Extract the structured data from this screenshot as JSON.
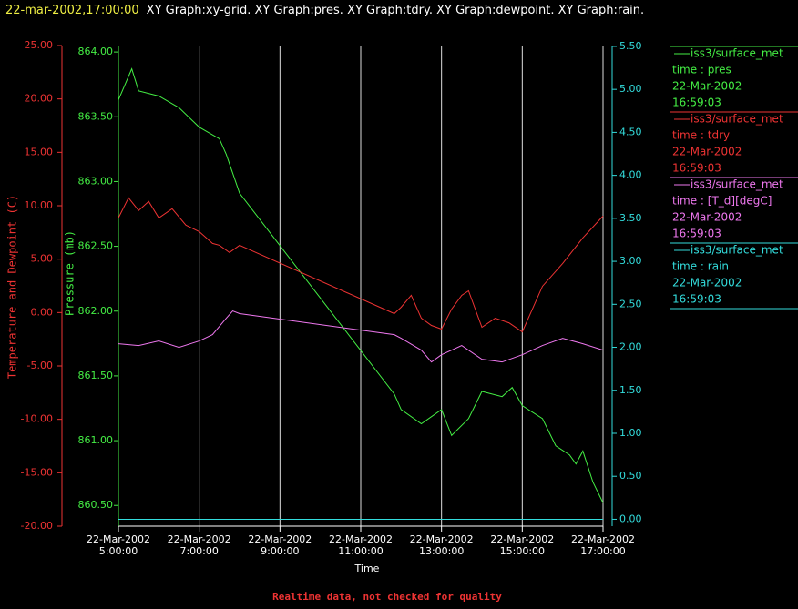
{
  "header": {
    "timestamp": "22-mar-2002,17:00:00",
    "title": "XY Graph:xy-grid.  XY Graph:pres.  XY Graph:tdry.  XY Graph:dewpoint.  XY Graph:rain."
  },
  "footer": "Realtime data, not checked for quality",
  "chart_data": {
    "type": "line",
    "grid": true,
    "xlabel": "Time",
    "ylabel": "Temperature and Dewpoint (C)",
    "y2label": "Pressure (mb)",
    "xlim": [
      5,
      17
    ],
    "xticks": [
      {
        "value": 5,
        "label": "22-Mar-2002\n5:00:00"
      },
      {
        "value": 7,
        "label": "22-Mar-2002\n7:00:00"
      },
      {
        "value": 9,
        "label": "22-Mar-2002\n9:00:00"
      },
      {
        "value": 11,
        "label": "22-Mar-2002\n11:00:00"
      },
      {
        "value": 13,
        "label": "22-Mar-2002\n13:00:00"
      },
      {
        "value": 15,
        "label": "22-Mar-2002\n15:00:00"
      },
      {
        "value": 17,
        "label": "22-Mar-2002\n17:00:00"
      }
    ],
    "ylim": [
      -20,
      25
    ],
    "yticks": [
      {
        "value": -20,
        "label": "-20.00"
      },
      {
        "value": -15,
        "label": "-15.00"
      },
      {
        "value": -10,
        "label": "-10.00"
      },
      {
        "value": -5,
        "label": "-5.00"
      },
      {
        "value": 0,
        "label": "0.00"
      },
      {
        "value": 5,
        "label": "5.00"
      },
      {
        "value": 10,
        "label": "10.00"
      },
      {
        "value": 15,
        "label": "15.00"
      },
      {
        "value": 20,
        "label": "20.00"
      },
      {
        "value": 25,
        "label": "25.00"
      }
    ],
    "y2lim": [
      860.34,
      864.05
    ],
    "y2ticks": [
      {
        "value": 860.5,
        "label": "860.50"
      },
      {
        "value": 861,
        "label": "861.00"
      },
      {
        "value": 861.5,
        "label": "861.50"
      },
      {
        "value": 862,
        "label": "862.00"
      },
      {
        "value": 862.5,
        "label": "862.50"
      },
      {
        "value": 863,
        "label": "863.00"
      },
      {
        "value": 863.5,
        "label": "863.50"
      },
      {
        "value": 864,
        "label": "864.00"
      }
    ],
    "y3lim": [
      -0.08,
      5.51
    ],
    "y3ticks": [
      {
        "value": 0,
        "label": "0.00"
      },
      {
        "value": 0.5,
        "label": "0.50"
      },
      {
        "value": 1,
        "label": "1.00"
      },
      {
        "value": 1.5,
        "label": "1.50"
      },
      {
        "value": 2,
        "label": "2.00"
      },
      {
        "value": 2.5,
        "label": "2.50"
      },
      {
        "value": 3,
        "label": "3.00"
      },
      {
        "value": 3.5,
        "label": "3.50"
      },
      {
        "value": 4,
        "label": "4.00"
      },
      {
        "value": 4.5,
        "label": "4.50"
      },
      {
        "value": 5,
        "label": "5.00"
      },
      {
        "value": 5.5,
        "label": "5.50"
      }
    ],
    "series": [
      {
        "source": "iss3/surface_met",
        "name": "time : pres",
        "date": "22-Mar-2002",
        "time": "16:59:03",
        "color": "#44ee44",
        "axis": "y2",
        "x": [
          5,
          5.33,
          5.5,
          6,
          6.5,
          7,
          7.5,
          7.67,
          8,
          11.83,
          12,
          12.5,
          13,
          13.25,
          13.67,
          14,
          14.5,
          14.75,
          15,
          15.5,
          15.83,
          16.17,
          16.33,
          16.5,
          16.75,
          17
        ],
        "values": [
          863.63,
          863.87,
          863.7,
          863.66,
          863.57,
          863.42,
          863.33,
          863.21,
          862.91,
          861.36,
          861.24,
          861.13,
          861.24,
          861.04,
          861.17,
          861.38,
          861.34,
          861.41,
          861.27,
          861.17,
          860.96,
          860.89,
          860.82,
          860.92,
          860.68,
          860.52
        ]
      },
      {
        "source": "iss3/surface_met",
        "name": "time : tdry",
        "date": "22-Mar-2002",
        "time": "16:59:03",
        "color": "#ee3333",
        "axis": "y",
        "x": [
          5,
          5.25,
          5.5,
          5.75,
          6,
          6.33,
          6.67,
          7,
          7.33,
          7.5,
          7.75,
          8,
          11.83,
          12,
          12.25,
          12.5,
          12.75,
          13,
          13.25,
          13.5,
          13.67,
          14,
          14.33,
          14.67,
          15,
          15.25,
          15.5,
          16,
          16.5,
          17
        ],
        "values": [
          8.86,
          10.74,
          9.55,
          10.4,
          8.86,
          9.72,
          8.18,
          7.58,
          6.47,
          6.3,
          5.62,
          6.3,
          -0.1,
          0.5,
          1.61,
          -0.53,
          -1.21,
          -1.55,
          0.32,
          1.61,
          2.03,
          -1.38,
          -0.53,
          -0.96,
          -1.81,
          0.32,
          2.46,
          4.59,
          6.99,
          9.03
        ]
      },
      {
        "source": "iss3/surface_met",
        "name": "time : [T_d][degC]",
        "date": "22-Mar-2002",
        "time": "16:59:03",
        "color": "#ee77ee",
        "axis": "y",
        "x": [
          5,
          5.5,
          6,
          6.5,
          7,
          7.33,
          7.67,
          7.83,
          8,
          11.83,
          12,
          12.5,
          12.75,
          13,
          13.5,
          14,
          14.5,
          15,
          15.5,
          16,
          16.5,
          17
        ],
        "values": [
          -2.92,
          -3.09,
          -2.66,
          -3.26,
          -2.66,
          -2.07,
          -0.53,
          0.15,
          -0.1,
          -2.07,
          -2.41,
          -3.52,
          -4.63,
          -3.95,
          -3.09,
          -4.37,
          -4.63,
          -3.95,
          -3.09,
          -2.41,
          -2.92,
          -3.52
        ]
      },
      {
        "source": "iss3/surface_met",
        "name": "time : rain",
        "date": "22-Mar-2002",
        "time": "16:59:03",
        "color": "#33dddd",
        "axis": "y3",
        "x": [
          5,
          17
        ],
        "values": [
          0,
          0
        ]
      }
    ]
  }
}
